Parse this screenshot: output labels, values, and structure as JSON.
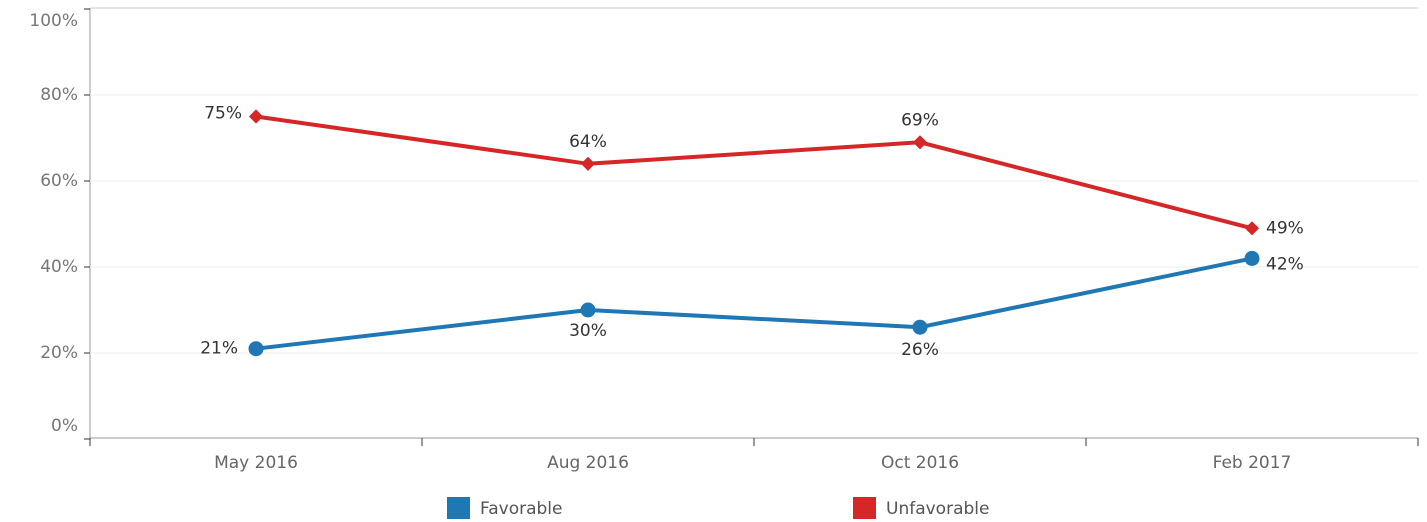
{
  "chart_data": {
    "type": "line",
    "categories": [
      "May 2016",
      "Aug 2016",
      "Oct 2016",
      "Feb 2017"
    ],
    "series": [
      {
        "name": "Favorable",
        "color": "#1f77b4",
        "values": [
          21,
          30,
          26,
          42
        ],
        "value_labels": [
          "21%",
          "30%",
          "26%",
          "42%"
        ]
      },
      {
        "name": "Unfavorable",
        "color": "#d62728",
        "values": [
          75,
          64,
          69,
          49
        ],
        "value_labels": [
          "75%",
          "64%",
          "69%",
          "49%"
        ]
      }
    ],
    "ylim": [
      0,
      100
    ],
    "yticks": [
      {
        "value": 0,
        "label": "0%"
      },
      {
        "value": 20,
        "label": "20%"
      },
      {
        "value": 40,
        "label": "40%"
      },
      {
        "value": 60,
        "label": "60%"
      },
      {
        "value": 80,
        "label": "80%"
      },
      {
        "value": 100,
        "label": "100%"
      }
    ],
    "grid": true,
    "legend": "bottom"
  }
}
